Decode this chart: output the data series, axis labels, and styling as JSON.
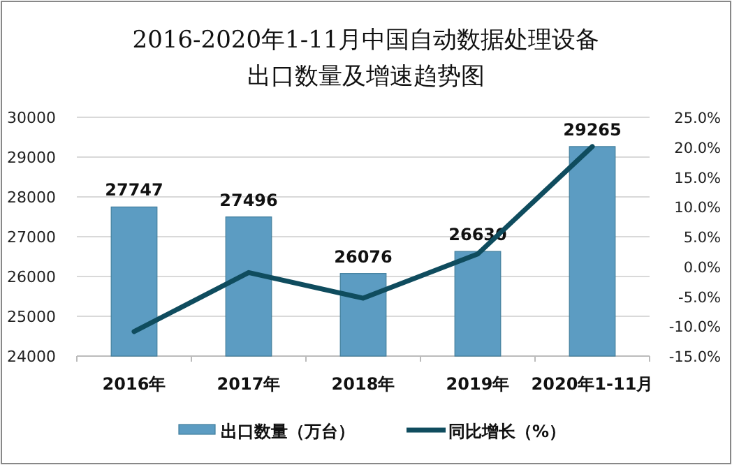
{
  "chart_data": {
    "type": "bar",
    "title": "2016-2020年1-11月中国自动数据处理设备出口数量及增速趋势图",
    "categories": [
      "2016年",
      "2017年",
      "2018年",
      "2019年",
      "2020年1-11月"
    ],
    "series": [
      {
        "name": "出口数量（万台）",
        "color": "#5c9cc2",
        "values": [
          27747,
          27496,
          26076,
          26630,
          29265
        ],
        "value_labels": [
          "27747",
          "27496",
          "26076",
          "26630",
          "29265"
        ]
      },
      {
        "name": "同比增长（%）",
        "type": "line",
        "axis": "y2",
        "color": "#0f4c5e",
        "values": [
          -10.9,
          -1.0,
          -5.3,
          2.1,
          20.1
        ]
      }
    ],
    "ylim": [
      24000,
      30000
    ],
    "yticks": [
      24000,
      25000,
      26000,
      27000,
      28000,
      29000,
      30000
    ],
    "y2lim": [
      -15,
      25
    ],
    "y2ticks": [
      {
        "value": -15,
        "label": "-15.0%"
      },
      {
        "value": -10,
        "label": "-10.0%"
      },
      {
        "value": -5,
        "label": "-5.0%"
      },
      {
        "value": 0,
        "label": "0.0%"
      },
      {
        "value": 5,
        "label": "5.0%"
      },
      {
        "value": 10,
        "label": "10.0%"
      },
      {
        "value": 15,
        "label": "15.0%"
      },
      {
        "value": 20,
        "label": "20.0%"
      },
      {
        "value": 25,
        "label": "25.0%"
      }
    ],
    "grid": "y",
    "legend": "bottom",
    "marker": "none",
    "line_style": "solid"
  }
}
